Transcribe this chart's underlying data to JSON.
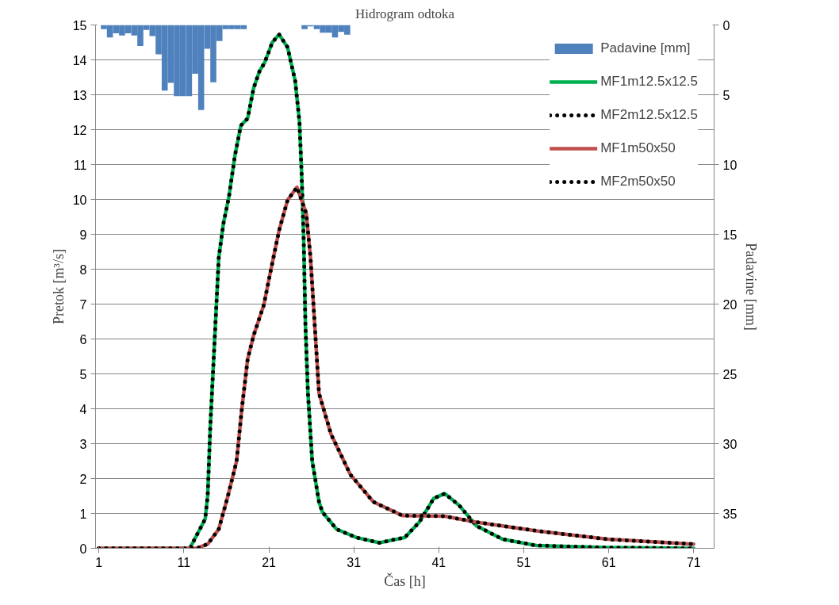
{
  "chart_data": {
    "type": "line",
    "title": "Hidrogram odtoka",
    "xlabel": "Čas [h]",
    "ylabel": "Pretok [m³/s]",
    "y2label": "Padavine [mm]",
    "xlim": [
      0.6,
      73.4
    ],
    "xticks": [
      1,
      11,
      21,
      31,
      41,
      51,
      61,
      71
    ],
    "ylim": [
      0,
      15
    ],
    "yticks": [
      0,
      1,
      2,
      3,
      4,
      5,
      6,
      7,
      8,
      9,
      10,
      11,
      12,
      13,
      14,
      15
    ],
    "y2lim": [
      37.5,
      0
    ],
    "y2ticks": [
      0,
      5,
      10,
      15,
      20,
      25,
      30,
      35
    ],
    "grid": "y",
    "legend": "top right",
    "series": [
      {
        "name": "Padavine [mm]",
        "type": "bar",
        "axis": "y2",
        "color": "#4f81bd",
        "x": [
          1.58,
          2.29,
          3.01,
          3.72,
          4.44,
          5.16,
          5.87,
          6.59,
          7.3,
          8.02,
          8.74,
          9.45,
          10.17,
          10.88,
          11.6,
          12.32,
          13.03,
          13.75,
          14.46,
          15.18,
          15.9,
          16.61,
          17.33,
          18.04,
          18.76,
          19.48,
          20.19,
          20.91,
          21.62,
          22.34,
          23.06,
          23.77,
          24.49,
          25.2,
          25.92,
          26.64,
          27.35,
          28.07,
          28.78,
          29.5,
          30.22
        ],
        "values": [
          0.3,
          0.9,
          0.6,
          0.75,
          0.6,
          0.75,
          1.5,
          0.35,
          0.8,
          2.1,
          4.7,
          4.15,
          5.1,
          5.1,
          5.1,
          3.5,
          6.1,
          1.7,
          4.1,
          1.15,
          0.3,
          0.3,
          0.3,
          0.3,
          0,
          0,
          0,
          0,
          0,
          0,
          0,
          0,
          0,
          0.3,
          0.1,
          0.3,
          0.55,
          0.55,
          0.9,
          0.5,
          0.7
        ]
      },
      {
        "name": "MF1m12.5x12.5",
        "line_style": "solid",
        "color": "#00b050",
        "x": [
          1,
          11.7,
          13.5,
          13.8,
          14.1,
          14.5,
          14.8,
          15.1,
          15.65,
          16.3,
          17.0,
          17.7,
          18.5,
          19.2,
          19.9,
          20.5,
          21.4,
          22.2,
          23.2,
          24.1,
          24.6,
          24.85,
          25.1,
          25.3,
          25.6,
          26.1,
          26.9,
          27.3,
          28.95,
          31.3,
          34.0,
          37.0,
          38.7,
          40.4,
          41.7,
          43.4,
          45.4,
          48.5,
          52.5,
          60.9,
          71
        ],
        "values": [
          0,
          0,
          0.84,
          1.52,
          3.47,
          5.42,
          6.87,
          8.33,
          9.31,
          10.08,
          11.25,
          12.12,
          12.32,
          13.19,
          13.68,
          13.92,
          14.5,
          14.73,
          14.36,
          13.39,
          12.22,
          10.76,
          8.82,
          6.4,
          4.44,
          2.5,
          1.33,
          1.04,
          0.55,
          0.31,
          0.16,
          0.31,
          0.75,
          1.43,
          1.57,
          1.23,
          0.65,
          0.26,
          0.08,
          0.02,
          0
        ]
      },
      {
        "name": "MF2m12.5x12.5",
        "line_style": "dotted",
        "color": "#000000",
        "x": [
          1,
          11.7,
          13.5,
          13.8,
          14.1,
          14.5,
          14.8,
          15.1,
          15.65,
          16.3,
          17.0,
          17.7,
          18.5,
          19.2,
          19.9,
          20.5,
          21.4,
          22.2,
          23.2,
          24.1,
          24.6,
          24.85,
          25.1,
          25.3,
          25.6,
          26.1,
          26.9,
          27.3,
          28.95,
          31.3,
          34.0,
          37.0,
          38.7,
          40.4,
          41.7,
          43.4,
          45.4,
          48.5,
          52.5,
          60.9,
          71
        ],
        "values": [
          0,
          0,
          0.84,
          1.52,
          3.47,
          5.42,
          6.87,
          8.33,
          9.31,
          10.08,
          11.25,
          12.12,
          12.32,
          13.19,
          13.68,
          13.92,
          14.5,
          14.73,
          14.36,
          13.39,
          12.22,
          10.76,
          8.82,
          6.4,
          4.44,
          2.5,
          1.33,
          1.04,
          0.55,
          0.31,
          0.16,
          0.31,
          0.75,
          1.43,
          1.57,
          1.23,
          0.65,
          0.26,
          0.08,
          0.02,
          0
        ]
      },
      {
        "name": "MF1m50x50",
        "line_style": "solid",
        "color": "#c0504d",
        "x": [
          1,
          12.5,
          13.8,
          15.1,
          16.2,
          17.2,
          17.8,
          18.5,
          19.2,
          20.4,
          21.2,
          22.2,
          23.2,
          24.3,
          25.4,
          25.9,
          26.4,
          26.9,
          28.3,
          30.6,
          33.3,
          36.7,
          41.7,
          45.4,
          52.5,
          60.9,
          71
        ],
        "values": [
          0,
          0,
          0.12,
          0.55,
          1.52,
          2.5,
          3.96,
          5.42,
          6.1,
          6.97,
          7.94,
          9.11,
          9.98,
          10.35,
          9.6,
          8.33,
          6.39,
          4.44,
          3.28,
          2.11,
          1.33,
          0.94,
          0.92,
          0.75,
          0.5,
          0.26,
          0.12
        ]
      },
      {
        "name": "MF2m50x50",
        "line_style": "dotted",
        "color": "#000000",
        "x": [
          1,
          12.5,
          13.8,
          15.1,
          16.2,
          17.2,
          17.8,
          18.5,
          19.2,
          20.4,
          21.2,
          22.2,
          23.2,
          24.3,
          25.4,
          25.9,
          26.4,
          26.9,
          28.3,
          30.6,
          33.3,
          36.7,
          41.7,
          45.4,
          52.5,
          60.9,
          71
        ],
        "values": [
          0,
          0,
          0.12,
          0.55,
          1.52,
          2.5,
          3.96,
          5.42,
          6.1,
          6.97,
          7.94,
          9.11,
          9.98,
          10.35,
          9.6,
          8.33,
          6.39,
          4.44,
          3.28,
          2.11,
          1.33,
          0.94,
          0.92,
          0.75,
          0.5,
          0.26,
          0.12
        ]
      }
    ]
  }
}
